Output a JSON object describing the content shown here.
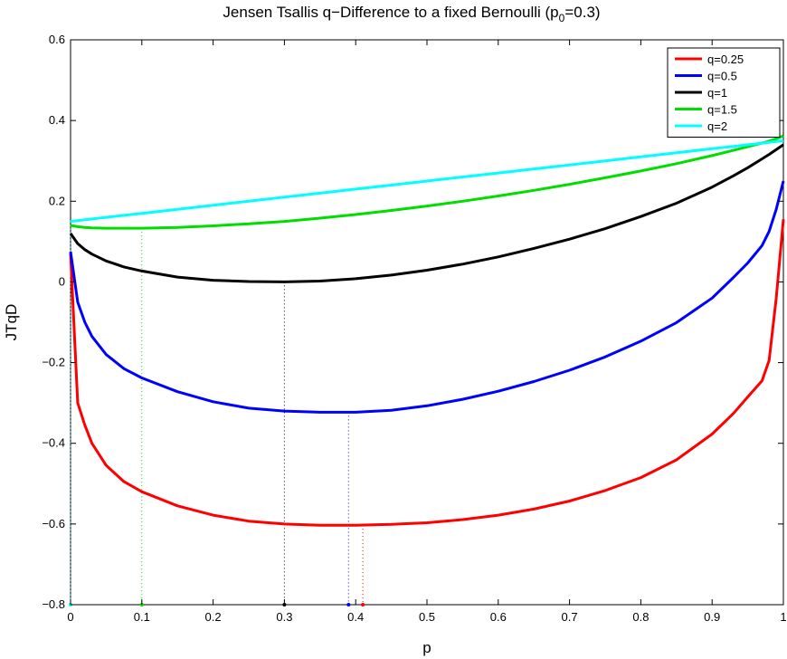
{
  "chart_data": {
    "type": "line",
    "title": "Jensen Tsallis q−Difference to a fixed Bernoulli (p",
    "title_sub": "0",
    "title_suffix": "=0.3)",
    "xlabel": "p",
    "ylabel": "JTqD",
    "xlim": [
      0,
      1
    ],
    "ylim": [
      -0.8,
      0.6
    ],
    "xticks": [
      0,
      0.1,
      0.2,
      0.3,
      0.4,
      0.5,
      0.6,
      0.7,
      0.8,
      0.9,
      1
    ],
    "xtick_labels": [
      "0",
      "0.1",
      "0.2",
      "0.3",
      "0.4",
      "0.5",
      "0.6",
      "0.7",
      "0.8",
      "0.9",
      "1"
    ],
    "yticks": [
      -0.8,
      -0.6,
      -0.4,
      -0.2,
      0,
      0.2,
      0.4,
      0.6
    ],
    "ytick_labels": [
      "−0.8",
      "−0.6",
      "−0.4",
      "−0.2",
      "0",
      "0.2",
      "0.4",
      "0.6"
    ],
    "grid": false,
    "legend_position": "top-right",
    "x": [
      0,
      0.01,
      0.02,
      0.03,
      0.05,
      0.075,
      0.1,
      0.15,
      0.2,
      0.25,
      0.3,
      0.35,
      0.4,
      0.45,
      0.5,
      0.55,
      0.6,
      0.65,
      0.7,
      0.75,
      0.8,
      0.85,
      0.9,
      0.93,
      0.95,
      0.97,
      0.98,
      0.99,
      1
    ],
    "series": [
      {
        "name": "q=0.25",
        "color": "#ff0000",
        "values": [
          0.07,
          -0.3,
          -0.355,
          -0.4,
          -0.455,
          -0.495,
          -0.52,
          -0.555,
          -0.578,
          -0.593,
          -0.6,
          -0.603,
          -0.603,
          -0.601,
          -0.597,
          -0.589,
          -0.578,
          -0.563,
          -0.543,
          -0.517,
          -0.485,
          -0.441,
          -0.377,
          -0.326,
          -0.285,
          -0.245,
          -0.195,
          -0.04,
          0.155
        ],
        "min_x": 0.41
      },
      {
        "name": "q=0.5",
        "color": "#0000ff",
        "values": [
          0.075,
          -0.05,
          -0.1,
          -0.135,
          -0.18,
          -0.215,
          -0.238,
          -0.272,
          -0.297,
          -0.313,
          -0.32,
          -0.323,
          -0.323,
          -0.318,
          -0.307,
          -0.291,
          -0.271,
          -0.247,
          -0.219,
          -0.186,
          -0.147,
          -0.101,
          -0.04,
          0.011,
          0.047,
          0.09,
          0.125,
          0.18,
          0.25
        ],
        "min_x": 0.39
      },
      {
        "name": "q=1",
        "color": "#000000",
        "values": [
          0.12,
          0.095,
          0.08,
          0.069,
          0.052,
          0.037,
          0.027,
          0.012,
          0.004,
          0.001,
          0.0,
          0.002,
          0.008,
          0.017,
          0.029,
          0.044,
          0.062,
          0.083,
          0.106,
          0.132,
          0.162,
          0.195,
          0.235,
          0.263,
          0.283,
          0.305,
          0.316,
          0.328,
          0.34
        ],
        "min_x": 0.3
      },
      {
        "name": "q=1.5",
        "color": "#00dd00",
        "values": [
          0.14,
          0.137,
          0.135,
          0.134,
          0.133,
          0.133,
          0.133,
          0.135,
          0.139,
          0.144,
          0.15,
          0.158,
          0.167,
          0.177,
          0.188,
          0.2,
          0.213,
          0.227,
          0.242,
          0.258,
          0.275,
          0.293,
          0.313,
          0.326,
          0.335,
          0.344,
          0.349,
          0.355,
          0.362
        ],
        "min_x": 0.1
      },
      {
        "name": "q=2",
        "color": "#00ffff",
        "values": [
          0.15,
          0.152,
          0.154,
          0.156,
          0.16,
          0.165,
          0.17,
          0.18,
          0.19,
          0.2,
          0.21,
          0.22,
          0.23,
          0.24,
          0.25,
          0.26,
          0.27,
          0.28,
          0.29,
          0.3,
          0.31,
          0.32,
          0.33,
          0.336,
          0.34,
          0.344,
          0.346,
          0.348,
          0.35
        ],
        "min_x": 0
      }
    ]
  }
}
